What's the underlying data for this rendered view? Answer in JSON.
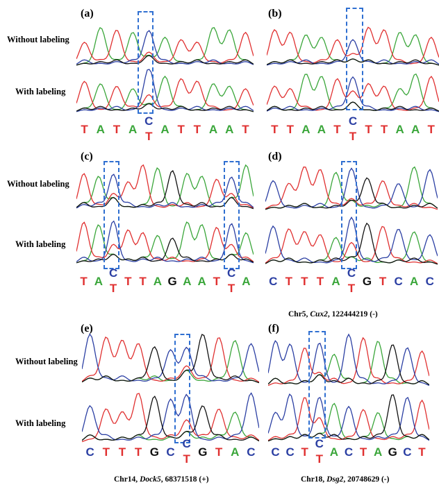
{
  "colors": {
    "A": "#3aa63a",
    "T": "#e03030",
    "C": "#2b3fa3",
    "G": "#111111",
    "highlight_box": "#2f6fd1"
  },
  "panels": [
    {
      "label": "(a)",
      "row1": "Without labeling",
      "row2": "With labeling",
      "sequence": [
        [
          "T"
        ],
        [
          "A"
        ],
        [
          "T"
        ],
        [
          "A"
        ],
        [
          "C",
          "T"
        ],
        [
          "A"
        ],
        [
          "T"
        ],
        [
          "T"
        ],
        [
          "A"
        ],
        [
          "A"
        ],
        [
          "T"
        ]
      ]
    },
    {
      "label": "(b)",
      "sequence": [
        [
          "T"
        ],
        [
          "T"
        ],
        [
          "A"
        ],
        [
          "A"
        ],
        [
          "T"
        ],
        [
          "C",
          "T"
        ],
        [
          "T"
        ],
        [
          "T"
        ],
        [
          "A"
        ],
        [
          "A"
        ],
        [
          "T"
        ]
      ]
    },
    {
      "label": "(c)",
      "row1": "Without labeling",
      "row2": "With labeling",
      "sequence": [
        [
          "T"
        ],
        [
          "A"
        ],
        [
          "C",
          "T"
        ],
        [
          "T"
        ],
        [
          "T"
        ],
        [
          "A"
        ],
        [
          "G"
        ],
        [
          "A"
        ],
        [
          "A"
        ],
        [
          "T"
        ],
        [
          "C",
          "T"
        ],
        [
          "A"
        ]
      ]
    },
    {
      "label": "(d)",
      "sequence": [
        [
          "C"
        ],
        [
          "T"
        ],
        [
          "T"
        ],
        [
          "T"
        ],
        [
          "A"
        ],
        [
          "C",
          "T"
        ],
        [
          "G"
        ],
        [
          "T"
        ],
        [
          "C"
        ],
        [
          "A"
        ],
        [
          "C"
        ]
      ],
      "caption": {
        "pre": "Chr5, ",
        "gene": "Cux2",
        "post": ", 122444219 (-)"
      }
    },
    {
      "label": "(e)",
      "row1": "Without labeling",
      "row2": "With labeling",
      "sequence": [
        [
          "C"
        ],
        [
          "T"
        ],
        [
          "T"
        ],
        [
          "T"
        ],
        [
          "G"
        ],
        [
          "C"
        ],
        [
          "C",
          "T"
        ],
        [
          "G"
        ],
        [
          "T"
        ],
        [
          "A"
        ],
        [
          "C"
        ]
      ],
      "caption": {
        "pre": "Chr14, ",
        "gene": "Dock5",
        "post": ", 68371518 (+)"
      }
    },
    {
      "label": "(f)",
      "sequence": [
        [
          "C"
        ],
        [
          "C"
        ],
        [
          "T"
        ],
        [
          "C",
          "T"
        ],
        [
          "A"
        ],
        [
          "C"
        ],
        [
          "T"
        ],
        [
          "A"
        ],
        [
          "G"
        ],
        [
          "C"
        ],
        [
          "T"
        ]
      ],
      "caption": {
        "pre": "Chr18, ",
        "gene": "Dsg2",
        "post": ", 20748629 (-)"
      }
    }
  ]
}
